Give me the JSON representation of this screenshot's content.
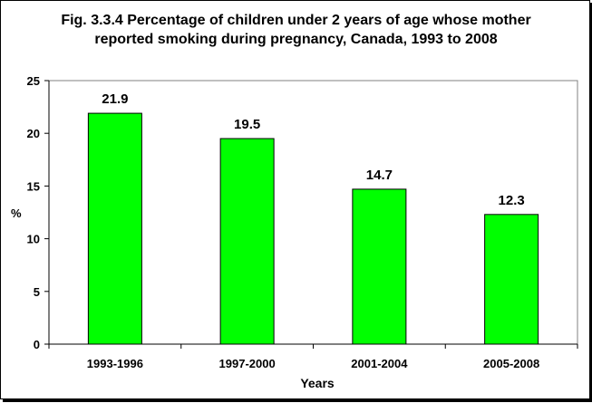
{
  "chart_data": {
    "type": "bar",
    "title_lines": [
      "Fig. 3.3.4 Percentage of children under 2 years of age whose mother",
      "reported smoking during pregnancy, Canada, 1993 to 2008"
    ],
    "categories": [
      "1993-1996",
      "1997-2000",
      "2001-2004",
      "2005-2008"
    ],
    "values": [
      21.9,
      19.5,
      14.7,
      12.3
    ],
    "data_labels": [
      "21.9",
      "19.5",
      "14.7",
      "12.3"
    ],
    "xlabel": "Years",
    "ylabel": "%",
    "ylim": [
      0,
      25
    ],
    "yticks": [
      0,
      5,
      10,
      15,
      20,
      25
    ],
    "bar_color": "#00ff00",
    "grid": false,
    "legend": "none"
  }
}
